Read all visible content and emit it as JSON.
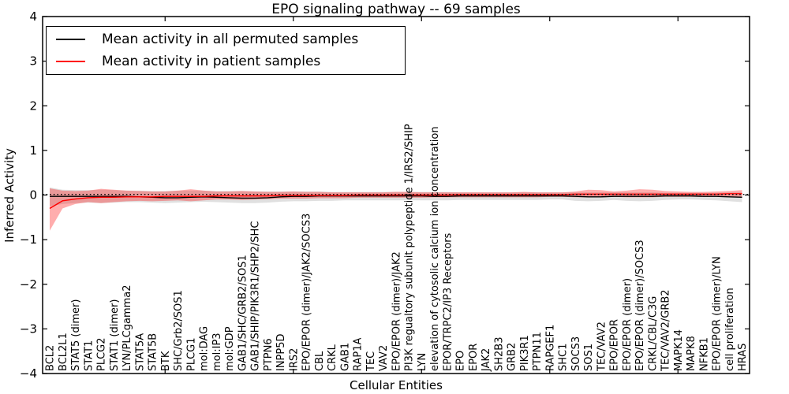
{
  "figure": {
    "title": "EPO signaling pathway -- 69 samples",
    "xlabel": "Cellular Entities",
    "ylabel": "Inferred Activity"
  },
  "legend": {
    "items": [
      {
        "label": "Mean activity in all permuted samples",
        "color": "#000000"
      },
      {
        "label": "Mean activity in patient samples",
        "color": "#ff0000"
      }
    ]
  },
  "chart_data": {
    "type": "line",
    "title": "EPO signaling pathway -- 69 samples",
    "xlabel": "Cellular Entities",
    "ylabel": "Inferred Activity",
    "ylim": [
      -4,
      4
    ],
    "yticks": [
      "−4",
      "−3",
      "−2",
      "−1",
      "0",
      "1",
      "2",
      "3",
      "4"
    ],
    "ytick_values": [
      -4,
      -3,
      -2,
      -1,
      0,
      1,
      2,
      3,
      4
    ],
    "xtick_positions": [
      10,
      20,
      30,
      40,
      50
    ],
    "grid": false,
    "legend_position": "upper left",
    "zero_reference_line": {
      "y": 0,
      "style": "dotted",
      "color": "#000000"
    },
    "colors": {
      "permuted_line": "#000000",
      "patient_line": "#ff0000",
      "permuted_band": "#000000",
      "patient_band": "#ff0000",
      "permuted_band_opacity": 0.12,
      "patient_band_opacity": 0.32
    },
    "categories": [
      "BCL2",
      "BCL2L1",
      "STAT5 (dimer)",
      "STAT1",
      "PLCG2",
      "STAT1 (dimer)",
      "LYN/PLCgamma2",
      "STAT5A",
      "STAT5B",
      "BTK",
      "SHC/Grb2/SOS1",
      "PLCG1",
      "mol:DAG",
      "mol:IP3",
      "mol:GDP",
      "GAB1/SHC/GRB2/SOS1",
      "GAB1/SHIP/PIK3R1/SHP2/SHC",
      "PTPN6",
      "INPP5D",
      "IRS2",
      "EPO/EPOR (dimer)/JAK2/SOCS3",
      "CBL",
      "CRKL",
      "GAB1",
      "RAP1A",
      "TEC",
      "VAV2",
      "EPO/EPOR (dimer)/JAK2",
      "PI3K regualtory subunit polypeptide 1/IRS2/SHIP",
      "LYN",
      "elevation of cytosolic calcium ion concentration",
      "EPOR/TRPC2/IP3 Receptors",
      "EPO",
      "EPOR",
      "JAK2",
      "SH2B3",
      "GRB2",
      "PIK3R1",
      "PTPN11",
      "RAPGEF1",
      "SHC1",
      "SOCS3",
      "SOS1",
      "TEC/VAV2",
      "EPO/EPOR",
      "EPO/EPOR (dimer)",
      "EPO/EPOR (dimer)/SOCS3",
      "CRKL/CBL/C3G",
      "TEC/VAV2/GRB2",
      "MAPK14",
      "MAPK8",
      "NFKB1",
      "EPO/EPOR (dimer)/LYN",
      "cell proliferation",
      "HRAS"
    ],
    "series": [
      {
        "name": "Mean activity in all permuted samples",
        "type": "line",
        "color": "#000000",
        "values": [
          -0.03,
          -0.03,
          -0.03,
          -0.03,
          -0.03,
          -0.03,
          -0.03,
          -0.04,
          -0.05,
          -0.06,
          -0.06,
          -0.05,
          -0.04,
          -0.05,
          -0.06,
          -0.07,
          -0.07,
          -0.06,
          -0.04,
          -0.03,
          -0.03,
          -0.02,
          -0.02,
          -0.02,
          -0.02,
          -0.02,
          -0.02,
          -0.02,
          -0.02,
          -0.02,
          -0.03,
          -0.03,
          -0.02,
          -0.02,
          -0.02,
          -0.02,
          -0.02,
          -0.02,
          -0.02,
          -0.02,
          -0.02,
          -0.03,
          -0.04,
          -0.04,
          -0.03,
          -0.03,
          -0.03,
          -0.03,
          -0.02,
          -0.02,
          -0.02,
          -0.03,
          -0.03,
          -0.04,
          -0.05
        ]
      },
      {
        "name": "Mean activity in patient samples",
        "type": "line",
        "color": "#ff0000",
        "values": [
          -0.3,
          -0.13,
          -0.09,
          -0.06,
          -0.05,
          -0.05,
          -0.04,
          -0.04,
          -0.04,
          -0.03,
          -0.03,
          -0.03,
          -0.03,
          -0.02,
          -0.02,
          -0.02,
          -0.02,
          -0.02,
          -0.01,
          -0.01,
          -0.01,
          -0.01,
          -0.01,
          -0.01,
          0.0,
          0.0,
          0.0,
          0.0,
          0.0,
          0.0,
          0.0,
          0.0,
          0.01,
          0.01,
          0.01,
          0.01,
          0.01,
          0.01,
          0.01,
          0.01,
          0.01,
          0.02,
          0.02,
          0.02,
          0.02,
          0.02,
          0.02,
          0.02,
          0.02,
          0.02,
          0.02,
          0.02,
          0.02,
          0.03,
          0.03
        ]
      },
      {
        "name": "Permuted samples spread band",
        "type": "band",
        "color": "#000000",
        "opacity": 0.12,
        "upper": [
          0.17,
          0.12,
          0.11,
          0.11,
          0.12,
          0.11,
          0.1,
          0.1,
          0.09,
          0.09,
          0.1,
          0.1,
          0.1,
          0.09,
          0.09,
          0.09,
          0.08,
          0.08,
          0.08,
          0.08,
          0.08,
          0.08,
          0.07,
          0.07,
          0.07,
          0.07,
          0.07,
          0.07,
          0.07,
          0.07,
          0.07,
          0.07,
          0.06,
          0.06,
          0.06,
          0.06,
          0.06,
          0.06,
          0.06,
          0.06,
          0.06,
          0.06,
          0.06,
          0.06,
          0.06,
          0.06,
          0.06,
          0.06,
          0.05,
          0.05,
          0.05,
          0.05,
          0.05,
          0.06,
          0.06
        ],
        "lower": [
          -0.25,
          -0.2,
          -0.18,
          -0.17,
          -0.18,
          -0.17,
          -0.16,
          -0.16,
          -0.17,
          -0.18,
          -0.17,
          -0.16,
          -0.15,
          -0.16,
          -0.17,
          -0.18,
          -0.18,
          -0.17,
          -0.15,
          -0.14,
          -0.14,
          -0.13,
          -0.13,
          -0.12,
          -0.12,
          -0.12,
          -0.12,
          -0.12,
          -0.12,
          -0.12,
          -0.12,
          -0.12,
          -0.11,
          -0.11,
          -0.11,
          -0.11,
          -0.11,
          -0.11,
          -0.11,
          -0.1,
          -0.1,
          -0.13,
          -0.14,
          -0.13,
          -0.11,
          -0.13,
          -0.14,
          -0.13,
          -0.11,
          -0.1,
          -0.1,
          -0.11,
          -0.12,
          -0.14,
          -0.16
        ]
      },
      {
        "name": "Patient samples spread band",
        "type": "band",
        "color": "#ff0000",
        "opacity": 0.32,
        "upper": [
          0.15,
          0.1,
          0.09,
          0.1,
          0.14,
          0.12,
          0.1,
          0.09,
          0.08,
          0.08,
          0.1,
          0.13,
          0.1,
          0.08,
          0.08,
          0.09,
          0.08,
          0.07,
          0.07,
          0.08,
          0.07,
          0.07,
          0.06,
          0.06,
          0.06,
          0.06,
          0.06,
          0.07,
          0.07,
          0.06,
          0.06,
          0.06,
          0.06,
          0.06,
          0.06,
          0.06,
          0.06,
          0.07,
          0.06,
          0.06,
          0.06,
          0.08,
          0.12,
          0.11,
          0.08,
          0.1,
          0.13,
          0.12,
          0.09,
          0.08,
          0.07,
          0.07,
          0.08,
          0.09,
          0.11
        ],
        "lower": [
          -0.8,
          -0.3,
          -0.2,
          -0.16,
          -0.18,
          -0.16,
          -0.14,
          -0.13,
          -0.14,
          -0.13,
          -0.12,
          -0.14,
          -0.12,
          -0.1,
          -0.1,
          -0.11,
          -0.1,
          -0.09,
          -0.08,
          -0.08,
          -0.08,
          -0.07,
          -0.07,
          -0.07,
          -0.06,
          -0.06,
          -0.06,
          -0.06,
          -0.06,
          -0.06,
          -0.05,
          -0.05,
          -0.05,
          -0.05,
          -0.05,
          -0.05,
          -0.05,
          -0.05,
          -0.05,
          -0.04,
          -0.04,
          -0.05,
          -0.05,
          -0.05,
          -0.04,
          -0.05,
          -0.05,
          -0.05,
          -0.04,
          -0.04,
          -0.04,
          -0.04,
          -0.04,
          -0.05,
          -0.05
        ]
      }
    ]
  }
}
